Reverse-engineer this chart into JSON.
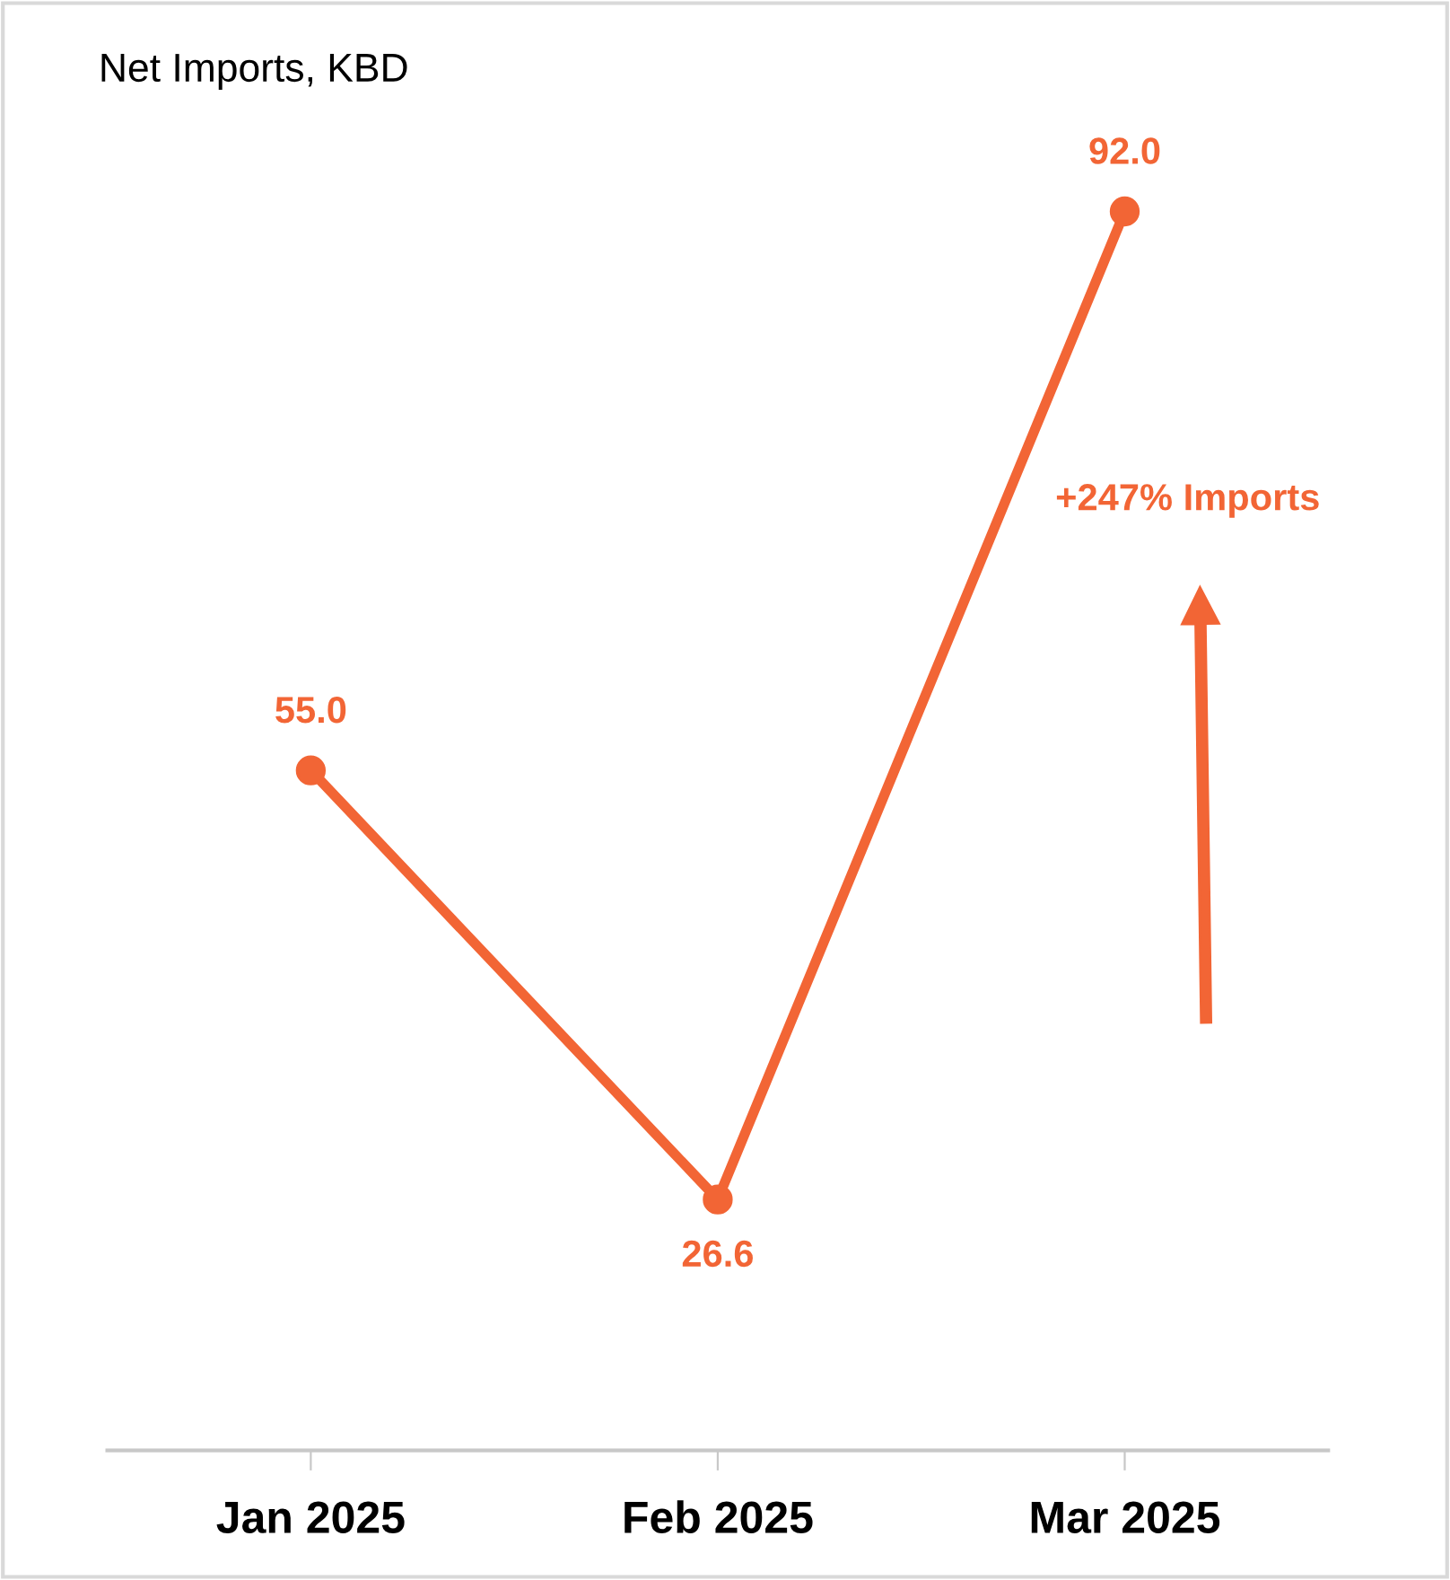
{
  "chart_data": {
    "type": "line",
    "title": "Net Imports, KBD",
    "categories": [
      "Jan 2025",
      "Feb 2025",
      "Mar 2025"
    ],
    "series": [
      {
        "color": "#f26535",
        "values": [
          55.0,
          26.6,
          92.0
        ],
        "value_labels": [
          "55.0",
          "26.6",
          "92.0"
        ]
      }
    ],
    "tick_labels": "x",
    "marker": "circle",
    "line_style": "solid",
    "grid": false,
    "legend": false,
    "annotations": [
      "+247% Imports"
    ]
  }
}
